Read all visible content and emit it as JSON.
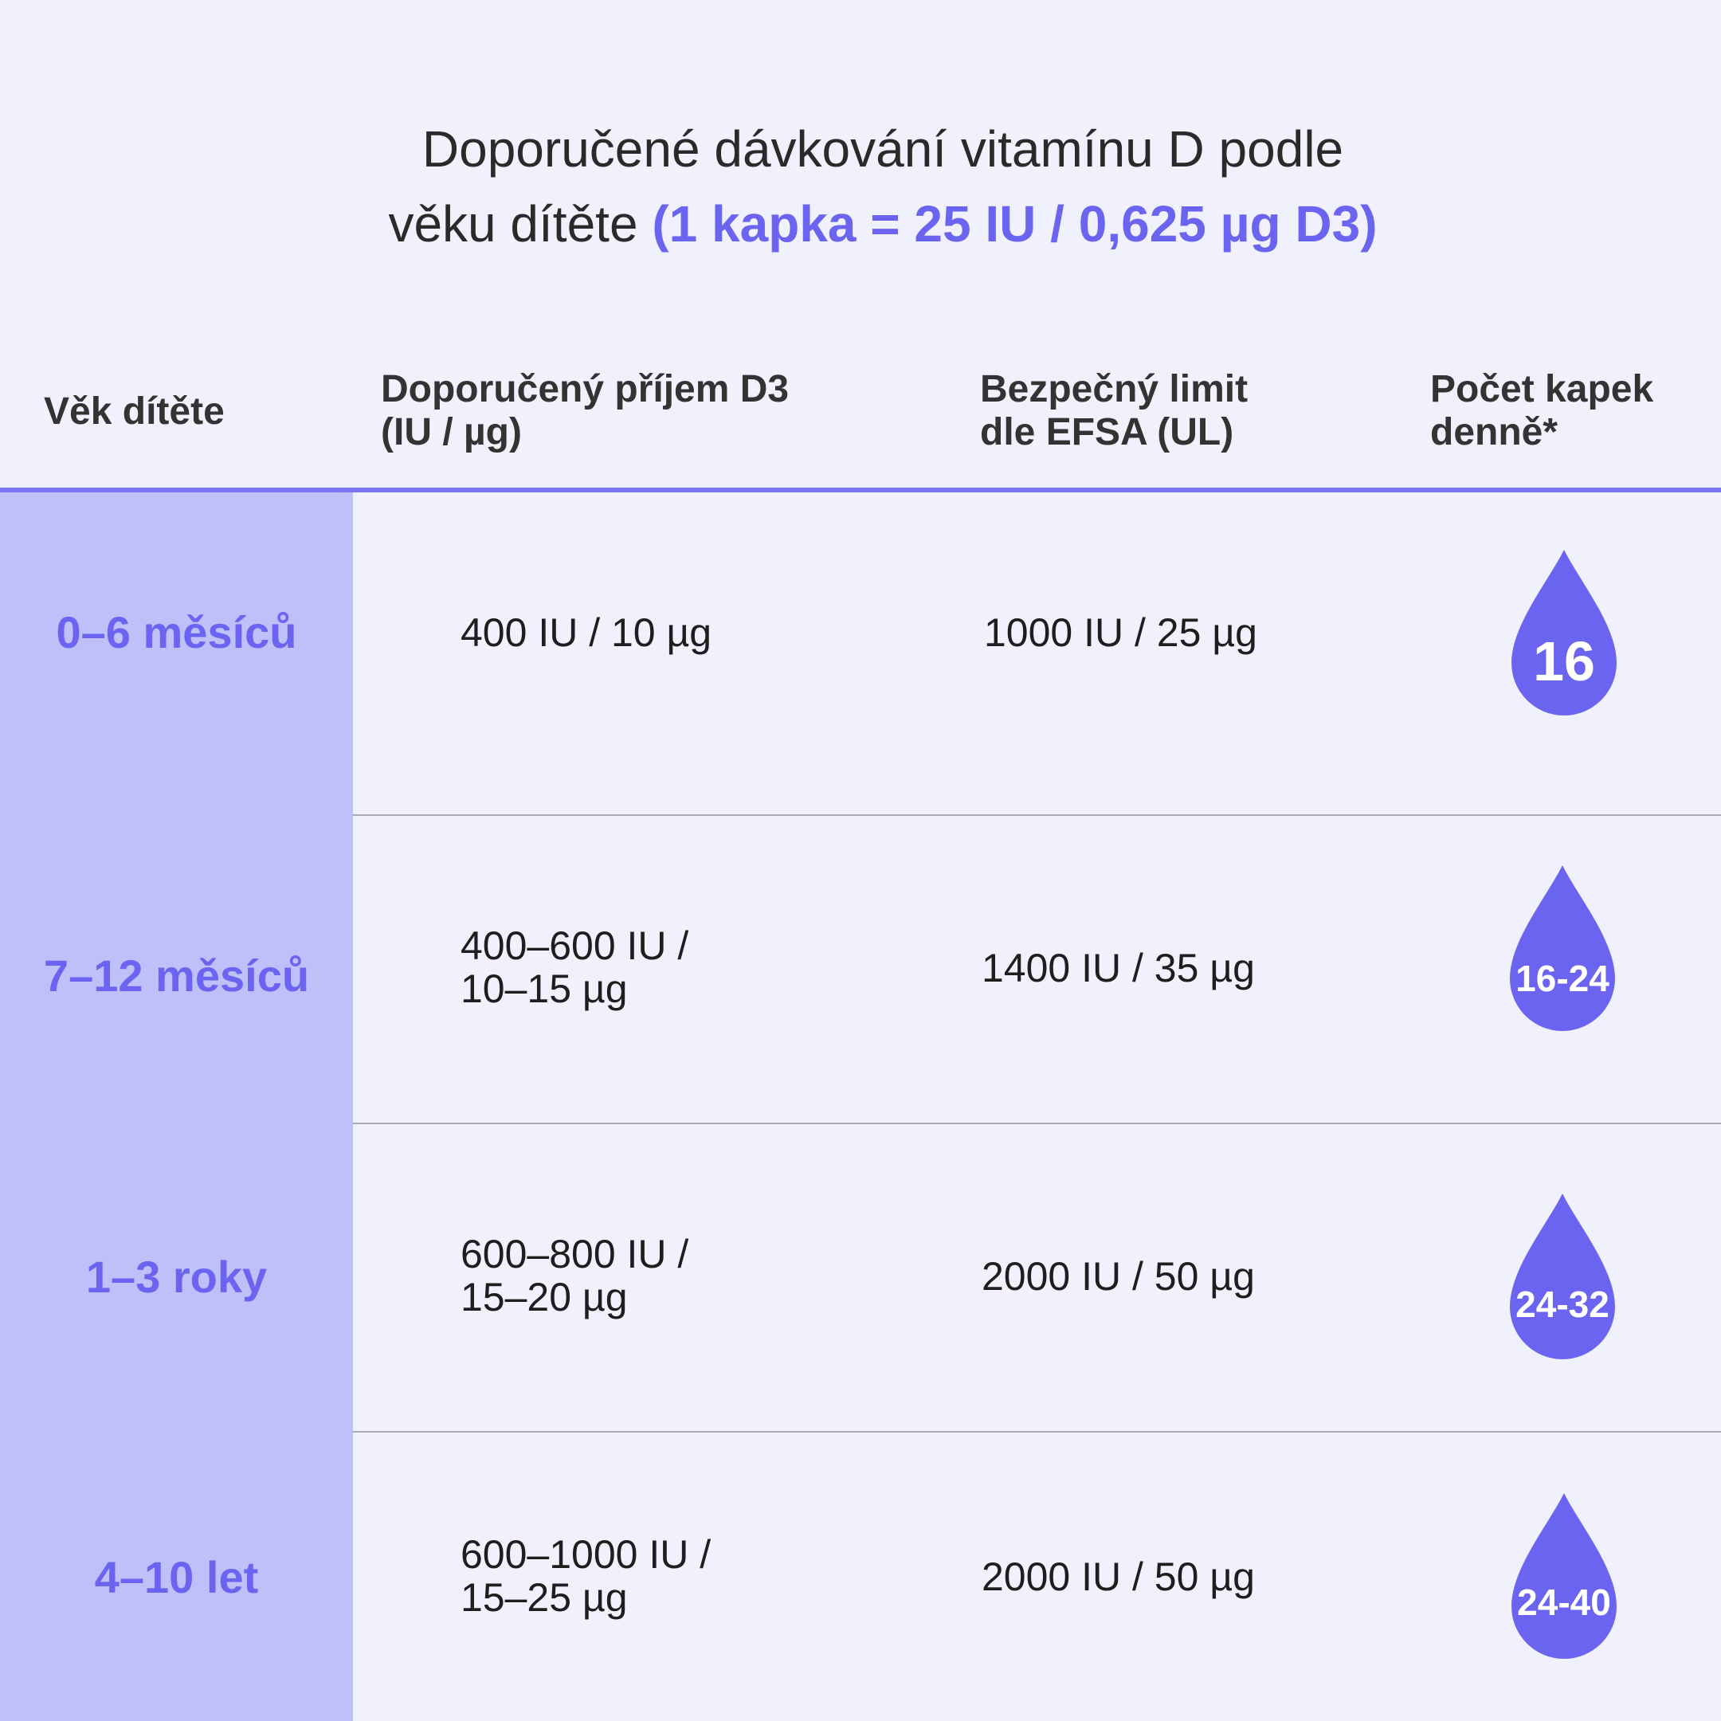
{
  "title": {
    "line1": "Doporučené dávkování vitamínu D podle",
    "line2_plain": "věku dítěte ",
    "line2_accent": "(1 kapka = 25 IU / 0,625 µg D3)"
  },
  "headers": {
    "age": "Věk dítěte",
    "intake_line1": "Doporučený příjem D3",
    "intake_line2": "(IU / µg)",
    "limit_line1": "Bezpečný limit",
    "limit_line2": "dle EFSA (UL)",
    "drops_line1": "Počet kapek",
    "drops_line2": "denně*"
  },
  "rows": [
    {
      "age": "0–6 měsíců",
      "intake_line1": "400 IU / 10 µg",
      "intake_line2": "",
      "limit": "1000 IU / 25 µg",
      "drops": "16"
    },
    {
      "age": "7–12 měsíců",
      "intake_line1": "400–600 IU /",
      "intake_line2": "10–15 µg",
      "limit": "1400 IU / 35 µg",
      "drops": "16-24"
    },
    {
      "age": "1–3 roky",
      "intake_line1": "600–800 IU /",
      "intake_line2": "15–20 µg",
      "limit": "2000 IU / 50 µg",
      "drops": "24-32"
    },
    {
      "age": "4–10 let",
      "intake_line1": "600–1000 IU /",
      "intake_line2": "15–25 µg",
      "limit": "2000 IU / 50 µg",
      "drops": "24-40"
    }
  ],
  "colors": {
    "accent": "#6a64f0",
    "drop": "#6a64f0",
    "age_column": "#bfbffa",
    "background": "#f0f1fc"
  },
  "icons": {
    "drop": "water-drop-icon"
  }
}
